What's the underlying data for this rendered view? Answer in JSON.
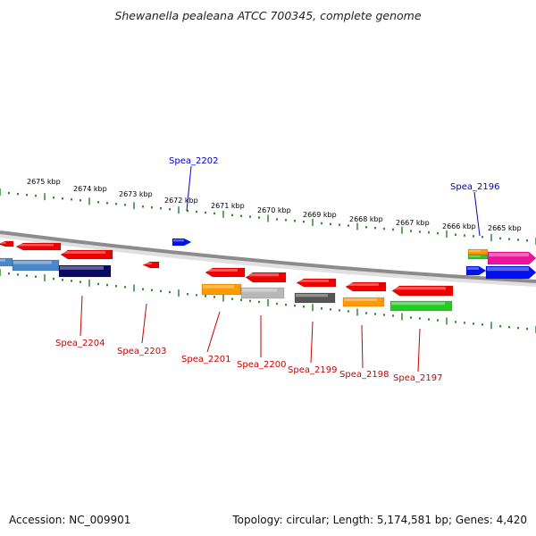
{
  "title": "Shewanella pealeana ATCC 700345, complete genome",
  "footer": {
    "accession": "Accession: NC_009901",
    "summary": "Topology: circular; Length: 5,174,581 bp; Genes: 4,420"
  },
  "scale_labels": [
    "2675 kbp",
    "2674 kbp",
    "2673 kbp",
    "2672 kbp",
    "2671 kbp",
    "2670 kbp",
    "2669 kbp",
    "2668 kbp",
    "2667 kbp",
    "2666 kbp",
    "2665 kbp"
  ],
  "gene_labels_top": [
    "Spea_2202",
    "Spea_2196"
  ],
  "gene_labels_bottom": [
    "Spea_2204",
    "Spea_2203",
    "Spea_2201",
    "Spea_2200",
    "Spea_2199",
    "Spea_2198",
    "Spea_2197"
  ],
  "colors": {
    "backbone": "#8c8c8c",
    "tick": "#2e8b2e",
    "top_label": "#0000cc",
    "bottom_label": "#cc0000",
    "gene_red": "#ee0000",
    "gene_blue": "#0011ee",
    "gene_steelblue": "#4a86c8",
    "gene_navy": "#0a0a66",
    "gene_orange": "#ff9900",
    "gene_silver": "#b8b8b8",
    "gene_darkgray": "#555555",
    "gene_green": "#22cc22",
    "gene_magenta": "#ee1199"
  }
}
